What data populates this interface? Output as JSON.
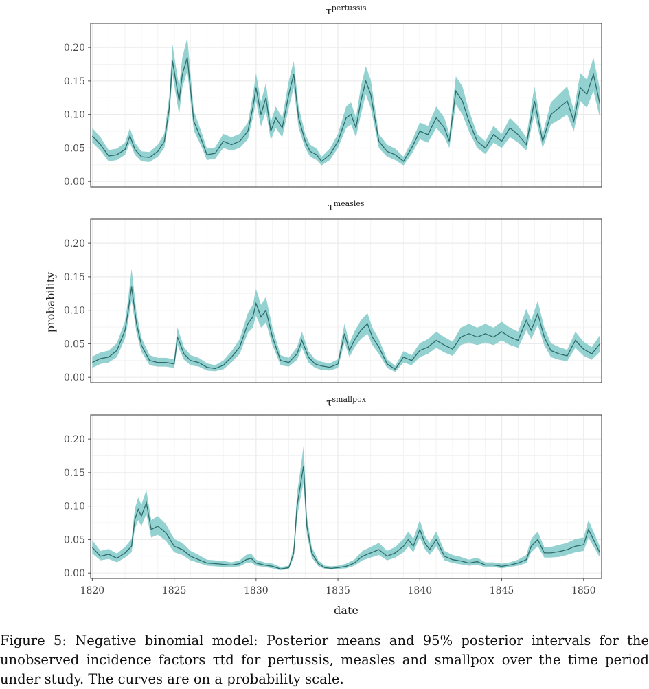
{
  "chart_data": {
    "type": "line",
    "xlabel": "date",
    "ylabel": "probability",
    "xlim": [
      1819.9,
      1851.1
    ],
    "ylim": [
      -0.008,
      0.236
    ],
    "x_ticks": [
      1820,
      1825,
      1830,
      1835,
      1840,
      1845,
      1850
    ],
    "y_ticks": [
      0.0,
      0.05,
      0.1,
      0.15,
      0.2
    ],
    "y_tick_labels": [
      "0.00",
      "0.05",
      "0.10",
      "0.15",
      "0.20"
    ],
    "grid": true,
    "band": "95% posterior interval",
    "colors": {
      "band": "#8ecfcf",
      "line": "#2e6b6b",
      "grid": "#ebebeb",
      "frame": "#333333"
    },
    "panels": [
      {
        "symbol": "τ",
        "superscript": "pertussis",
        "x": [
          1820.0,
          1820.5,
          1821.0,
          1821.5,
          1822.0,
          1822.3,
          1822.6,
          1823.0,
          1823.5,
          1824.0,
          1824.4,
          1824.7,
          1824.9,
          1825.1,
          1825.3,
          1825.5,
          1825.8,
          1826.2,
          1826.7,
          1827.0,
          1827.5,
          1828.0,
          1828.5,
          1829.0,
          1829.5,
          1829.8,
          1830.0,
          1830.3,
          1830.6,
          1830.9,
          1831.2,
          1831.6,
          1832.0,
          1832.3,
          1832.6,
          1833.0,
          1833.3,
          1833.7,
          1834.0,
          1834.5,
          1835.0,
          1835.5,
          1835.8,
          1836.1,
          1836.4,
          1836.7,
          1837.0,
          1837.5,
          1838.0,
          1838.5,
          1839.0,
          1839.5,
          1840.0,
          1840.5,
          1841.0,
          1841.5,
          1841.8,
          1842.2,
          1842.6,
          1843.0,
          1843.5,
          1844.0,
          1844.5,
          1845.0,
          1845.5,
          1846.0,
          1846.5,
          1847.0,
          1847.5,
          1848.0,
          1848.5,
          1849.0,
          1849.4,
          1849.8,
          1850.2,
          1850.6,
          1851.0
        ],
        "mean": [
          0.068,
          0.055,
          0.038,
          0.04,
          0.048,
          0.068,
          0.048,
          0.037,
          0.036,
          0.045,
          0.06,
          0.11,
          0.18,
          0.15,
          0.12,
          0.16,
          0.185,
          0.09,
          0.06,
          0.04,
          0.042,
          0.06,
          0.055,
          0.06,
          0.075,
          0.11,
          0.14,
          0.1,
          0.125,
          0.075,
          0.095,
          0.08,
          0.13,
          0.16,
          0.095,
          0.06,
          0.045,
          0.04,
          0.03,
          0.04,
          0.06,
          0.095,
          0.1,
          0.08,
          0.12,
          0.15,
          0.13,
          0.06,
          0.045,
          0.04,
          0.03,
          0.05,
          0.075,
          0.07,
          0.095,
          0.08,
          0.06,
          0.135,
          0.12,
          0.09,
          0.06,
          0.05,
          0.07,
          0.06,
          0.08,
          0.07,
          0.055,
          0.12,
          0.06,
          0.1,
          0.11,
          0.12,
          0.09,
          0.14,
          0.13,
          0.16,
          0.115
        ],
        "lower": [
          0.058,
          0.046,
          0.03,
          0.032,
          0.04,
          0.058,
          0.04,
          0.03,
          0.029,
          0.037,
          0.05,
          0.095,
          0.16,
          0.13,
          0.1,
          0.14,
          0.165,
          0.076,
          0.05,
          0.032,
          0.034,
          0.05,
          0.046,
          0.05,
          0.063,
          0.095,
          0.12,
          0.082,
          0.105,
          0.062,
          0.08,
          0.066,
          0.11,
          0.14,
          0.08,
          0.05,
          0.037,
          0.032,
          0.024,
          0.032,
          0.05,
          0.08,
          0.085,
          0.066,
          0.1,
          0.13,
          0.11,
          0.05,
          0.037,
          0.032,
          0.024,
          0.041,
          0.063,
          0.058,
          0.08,
          0.066,
          0.05,
          0.115,
          0.1,
          0.075,
          0.05,
          0.041,
          0.058,
          0.05,
          0.066,
          0.058,
          0.046,
          0.1,
          0.05,
          0.085,
          0.092,
          0.1,
          0.075,
          0.12,
          0.11,
          0.135,
          0.095
        ],
        "upper": [
          0.08,
          0.066,
          0.047,
          0.049,
          0.058,
          0.08,
          0.058,
          0.045,
          0.044,
          0.055,
          0.072,
          0.128,
          0.205,
          0.172,
          0.142,
          0.185,
          0.215,
          0.106,
          0.071,
          0.049,
          0.051,
          0.071,
          0.066,
          0.071,
          0.088,
          0.128,
          0.162,
          0.119,
          0.147,
          0.089,
          0.112,
          0.095,
          0.15,
          0.18,
          0.112,
          0.071,
          0.055,
          0.049,
          0.037,
          0.049,
          0.071,
          0.112,
          0.118,
          0.095,
          0.142,
          0.172,
          0.152,
          0.071,
          0.055,
          0.049,
          0.037,
          0.06,
          0.088,
          0.083,
          0.112,
          0.095,
          0.071,
          0.157,
          0.142,
          0.106,
          0.071,
          0.06,
          0.083,
          0.071,
          0.095,
          0.083,
          0.066,
          0.142,
          0.071,
          0.118,
          0.13,
          0.142,
          0.106,
          0.162,
          0.152,
          0.185,
          0.137
        ]
      },
      {
        "symbol": "τ",
        "superscript": "measles",
        "x": [
          1820.0,
          1820.5,
          1821.0,
          1821.5,
          1822.0,
          1822.2,
          1822.4,
          1822.7,
          1823.0,
          1823.5,
          1824.0,
          1824.5,
          1825.0,
          1825.2,
          1825.6,
          1826.0,
          1826.5,
          1827.0,
          1827.5,
          1828.0,
          1828.5,
          1829.0,
          1829.5,
          1829.8,
          1830.0,
          1830.3,
          1830.6,
          1831.0,
          1831.5,
          1832.0,
          1832.5,
          1832.8,
          1833.2,
          1833.6,
          1834.0,
          1834.5,
          1835.0,
          1835.4,
          1835.7,
          1836.0,
          1836.4,
          1836.8,
          1837.1,
          1837.5,
          1838.0,
          1838.5,
          1839.0,
          1839.5,
          1840.0,
          1840.5,
          1841.0,
          1841.5,
          1842.0,
          1842.5,
          1843.0,
          1843.5,
          1844.0,
          1844.5,
          1845.0,
          1845.5,
          1846.0,
          1846.5,
          1846.8,
          1847.2,
          1847.6,
          1848.0,
          1848.5,
          1849.0,
          1849.5,
          1850.0,
          1850.5,
          1851.0
        ],
        "mean": [
          0.022,
          0.028,
          0.03,
          0.04,
          0.07,
          0.1,
          0.135,
          0.08,
          0.048,
          0.025,
          0.022,
          0.022,
          0.02,
          0.06,
          0.035,
          0.025,
          0.022,
          0.015,
          0.013,
          0.018,
          0.03,
          0.045,
          0.08,
          0.09,
          0.11,
          0.09,
          0.1,
          0.06,
          0.025,
          0.022,
          0.035,
          0.055,
          0.03,
          0.02,
          0.017,
          0.015,
          0.02,
          0.065,
          0.04,
          0.055,
          0.07,
          0.08,
          0.06,
          0.045,
          0.02,
          0.012,
          0.03,
          0.025,
          0.04,
          0.045,
          0.055,
          0.048,
          0.042,
          0.06,
          0.065,
          0.06,
          0.065,
          0.06,
          0.068,
          0.06,
          0.055,
          0.085,
          0.07,
          0.095,
          0.06,
          0.04,
          0.035,
          0.032,
          0.055,
          0.042,
          0.035,
          0.05
        ],
        "lower": [
          0.014,
          0.02,
          0.022,
          0.03,
          0.058,
          0.085,
          0.115,
          0.066,
          0.038,
          0.018,
          0.016,
          0.016,
          0.014,
          0.048,
          0.026,
          0.018,
          0.016,
          0.01,
          0.009,
          0.012,
          0.022,
          0.035,
          0.066,
          0.074,
          0.092,
          0.074,
          0.082,
          0.048,
          0.018,
          0.016,
          0.026,
          0.044,
          0.022,
          0.014,
          0.011,
          0.01,
          0.014,
          0.052,
          0.03,
          0.044,
          0.057,
          0.065,
          0.048,
          0.035,
          0.014,
          0.008,
          0.022,
          0.018,
          0.03,
          0.035,
          0.044,
          0.037,
          0.032,
          0.048,
          0.052,
          0.048,
          0.052,
          0.048,
          0.055,
          0.048,
          0.044,
          0.07,
          0.057,
          0.078,
          0.048,
          0.03,
          0.026,
          0.024,
          0.044,
          0.032,
          0.026,
          0.038
        ],
        "upper": [
          0.031,
          0.037,
          0.04,
          0.051,
          0.084,
          0.118,
          0.162,
          0.096,
          0.059,
          0.033,
          0.029,
          0.029,
          0.027,
          0.074,
          0.045,
          0.033,
          0.029,
          0.021,
          0.018,
          0.025,
          0.039,
          0.057,
          0.096,
          0.108,
          0.132,
          0.108,
          0.12,
          0.074,
          0.033,
          0.029,
          0.045,
          0.068,
          0.039,
          0.027,
          0.023,
          0.021,
          0.027,
          0.08,
          0.051,
          0.068,
          0.085,
          0.096,
          0.074,
          0.057,
          0.027,
          0.017,
          0.039,
          0.033,
          0.051,
          0.057,
          0.068,
          0.06,
          0.053,
          0.074,
          0.08,
          0.074,
          0.08,
          0.074,
          0.083,
          0.074,
          0.068,
          0.102,
          0.085,
          0.114,
          0.074,
          0.051,
          0.045,
          0.041,
          0.068,
          0.053,
          0.045,
          0.063
        ]
      },
      {
        "symbol": "τ",
        "superscript": "smallpox",
        "x": [
          1820.0,
          1820.5,
          1821.0,
          1821.5,
          1822.0,
          1822.4,
          1822.6,
          1822.8,
          1823.0,
          1823.3,
          1823.6,
          1824.0,
          1824.5,
          1825.0,
          1825.5,
          1826.0,
          1826.5,
          1827.0,
          1827.5,
          1828.0,
          1828.5,
          1829.0,
          1829.4,
          1829.7,
          1830.0,
          1830.5,
          1831.0,
          1831.5,
          1832.0,
          1832.3,
          1832.5,
          1832.7,
          1832.9,
          1833.1,
          1833.4,
          1833.8,
          1834.2,
          1834.6,
          1835.0,
          1835.5,
          1836.0,
          1836.5,
          1837.0,
          1837.5,
          1838.0,
          1838.5,
          1839.0,
          1839.3,
          1839.6,
          1840.0,
          1840.3,
          1840.6,
          1841.0,
          1841.5,
          1842.0,
          1842.5,
          1843.0,
          1843.5,
          1844.0,
          1844.5,
          1845.0,
          1845.5,
          1846.0,
          1846.5,
          1846.8,
          1847.2,
          1847.6,
          1848.0,
          1848.5,
          1849.0,
          1849.5,
          1850.0,
          1850.3,
          1850.6,
          1851.0
        ],
        "mean": [
          0.038,
          0.025,
          0.028,
          0.022,
          0.03,
          0.04,
          0.08,
          0.095,
          0.085,
          0.105,
          0.065,
          0.07,
          0.06,
          0.04,
          0.035,
          0.025,
          0.02,
          0.015,
          0.014,
          0.013,
          0.012,
          0.014,
          0.02,
          0.022,
          0.015,
          0.012,
          0.01,
          0.006,
          0.008,
          0.03,
          0.1,
          0.13,
          0.16,
          0.07,
          0.03,
          0.014,
          0.008,
          0.007,
          0.008,
          0.01,
          0.015,
          0.025,
          0.03,
          0.035,
          0.025,
          0.03,
          0.04,
          0.05,
          0.04,
          0.065,
          0.045,
          0.035,
          0.05,
          0.025,
          0.02,
          0.018,
          0.015,
          0.017,
          0.012,
          0.012,
          0.01,
          0.012,
          0.015,
          0.02,
          0.04,
          0.05,
          0.03,
          0.03,
          0.032,
          0.035,
          0.04,
          0.042,
          0.065,
          0.05,
          0.03
        ],
        "lower": [
          0.029,
          0.019,
          0.021,
          0.016,
          0.023,
          0.031,
          0.066,
          0.079,
          0.07,
          0.088,
          0.053,
          0.057,
          0.048,
          0.031,
          0.027,
          0.019,
          0.015,
          0.011,
          0.01,
          0.009,
          0.009,
          0.01,
          0.015,
          0.016,
          0.011,
          0.009,
          0.007,
          0.004,
          0.006,
          0.023,
          0.083,
          0.11,
          0.135,
          0.057,
          0.023,
          0.01,
          0.006,
          0.005,
          0.006,
          0.007,
          0.011,
          0.019,
          0.023,
          0.027,
          0.019,
          0.023,
          0.031,
          0.04,
          0.031,
          0.053,
          0.036,
          0.027,
          0.04,
          0.019,
          0.015,
          0.013,
          0.011,
          0.012,
          0.009,
          0.009,
          0.007,
          0.009,
          0.011,
          0.015,
          0.031,
          0.04,
          0.023,
          0.023,
          0.024,
          0.027,
          0.031,
          0.033,
          0.053,
          0.04,
          0.023
        ],
        "upper": [
          0.049,
          0.033,
          0.036,
          0.029,
          0.039,
          0.051,
          0.096,
          0.113,
          0.102,
          0.124,
          0.079,
          0.085,
          0.073,
          0.051,
          0.045,
          0.033,
          0.027,
          0.02,
          0.019,
          0.018,
          0.016,
          0.019,
          0.027,
          0.029,
          0.02,
          0.016,
          0.014,
          0.009,
          0.011,
          0.039,
          0.119,
          0.152,
          0.19,
          0.085,
          0.039,
          0.019,
          0.011,
          0.01,
          0.011,
          0.014,
          0.02,
          0.033,
          0.039,
          0.045,
          0.033,
          0.039,
          0.051,
          0.062,
          0.051,
          0.079,
          0.056,
          0.045,
          0.062,
          0.033,
          0.027,
          0.024,
          0.02,
          0.023,
          0.016,
          0.016,
          0.014,
          0.016,
          0.02,
          0.027,
          0.051,
          0.062,
          0.039,
          0.039,
          0.042,
          0.045,
          0.051,
          0.053,
          0.079,
          0.062,
          0.039
        ]
      }
    ]
  },
  "caption": {
    "text": "Figure 5: Negative binomial model: Posterior means and 95% posterior intervals for the unobserved incidence factors τtd for pertussis, measles and smallpox over the time period under study. The curves are on a probability scale."
  }
}
